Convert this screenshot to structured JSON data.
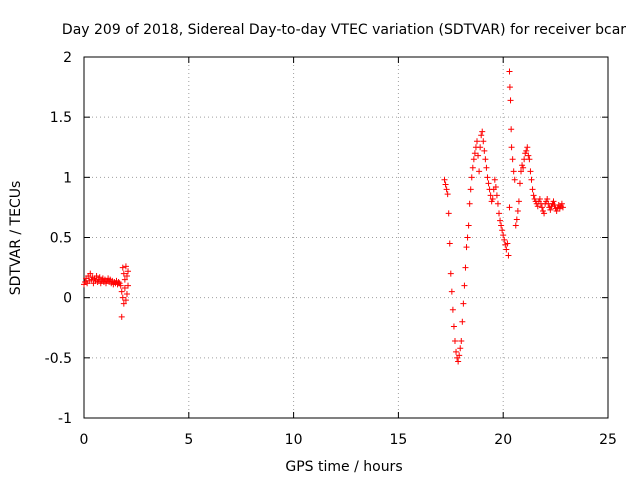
{
  "chart_data": {
    "type": "scatter",
    "title": "Day 209 of 2018, Sidereal Day-to-day VTEC variation (SDTVAR) for receiver bcar",
    "xlabel": "GPS time / hours",
    "ylabel": "SDTVAR / TECUs",
    "xlim": [
      0,
      25
    ],
    "ylim": [
      -1,
      2
    ],
    "grid": true,
    "marker": "+",
    "series_color": "#ff0000",
    "xticks": [
      {
        "value": 0,
        "label": "0"
      },
      {
        "value": 5,
        "label": "5"
      },
      {
        "value": 10,
        "label": "10"
      },
      {
        "value": 15,
        "label": "15"
      },
      {
        "value": 20,
        "label": "20"
      },
      {
        "value": 25,
        "label": "25"
      }
    ],
    "yticks": [
      {
        "value": -1,
        "label": "-1"
      },
      {
        "value": -0.5,
        "label": "-0.5"
      },
      {
        "value": 0,
        "label": "0"
      },
      {
        "value": 0.5,
        "label": "0.5"
      },
      {
        "value": 1,
        "label": "1"
      },
      {
        "value": 1.5,
        "label": "1.5"
      },
      {
        "value": 2,
        "label": "2"
      }
    ],
    "series": [
      {
        "name": "SDTVAR",
        "points": [
          [
            0.0,
            0.11
          ],
          [
            0.05,
            0.13
          ],
          [
            0.1,
            0.16
          ],
          [
            0.15,
            0.12
          ],
          [
            0.2,
            0.18
          ],
          [
            0.25,
            0.14
          ],
          [
            0.3,
            0.2
          ],
          [
            0.35,
            0.15
          ],
          [
            0.4,
            0.17
          ],
          [
            0.45,
            0.12
          ],
          [
            0.5,
            0.16
          ],
          [
            0.55,
            0.14
          ],
          [
            0.6,
            0.18
          ],
          [
            0.65,
            0.13
          ],
          [
            0.7,
            0.15
          ],
          [
            0.75,
            0.17
          ],
          [
            0.8,
            0.12
          ],
          [
            0.85,
            0.14
          ],
          [
            0.9,
            0.16
          ],
          [
            0.95,
            0.13
          ],
          [
            1.0,
            0.15
          ],
          [
            1.05,
            0.12
          ],
          [
            1.1,
            0.14
          ],
          [
            1.15,
            0.16
          ],
          [
            1.2,
            0.13
          ],
          [
            1.25,
            0.15
          ],
          [
            1.3,
            0.12
          ],
          [
            1.35,
            0.14
          ],
          [
            1.4,
            0.11
          ],
          [
            1.45,
            0.13
          ],
          [
            1.5,
            0.12
          ],
          [
            1.55,
            0.14
          ],
          [
            1.6,
            0.11
          ],
          [
            1.65,
            0.13
          ],
          [
            1.7,
            0.12
          ],
          [
            1.75,
            0.1
          ],
          [
            1.8,
            0.05
          ],
          [
            1.8,
            -0.16
          ],
          [
            1.85,
            0.25
          ],
          [
            1.85,
            0.0
          ],
          [
            1.9,
            0.2
          ],
          [
            1.9,
            -0.05
          ],
          [
            1.95,
            0.15
          ],
          [
            1.95,
            0.08
          ],
          [
            2.0,
            0.26
          ],
          [
            2.0,
            -0.02
          ],
          [
            2.05,
            0.18
          ],
          [
            2.05,
            0.03
          ],
          [
            2.1,
            0.22
          ],
          [
            2.1,
            0.1
          ],
          [
            17.2,
            0.98
          ],
          [
            17.25,
            0.94
          ],
          [
            17.3,
            0.9
          ],
          [
            17.35,
            0.86
          ],
          [
            17.4,
            0.7
          ],
          [
            17.45,
            0.45
          ],
          [
            17.5,
            0.2
          ],
          [
            17.55,
            0.05
          ],
          [
            17.6,
            -0.1
          ],
          [
            17.65,
            -0.24
          ],
          [
            17.7,
            -0.36
          ],
          [
            17.75,
            -0.45
          ],
          [
            17.8,
            -0.5
          ],
          [
            17.85,
            -0.53
          ],
          [
            17.9,
            -0.48
          ],
          [
            17.95,
            -0.42
          ],
          [
            18.0,
            -0.36
          ],
          [
            18.05,
            -0.2
          ],
          [
            18.1,
            -0.05
          ],
          [
            18.15,
            0.1
          ],
          [
            18.2,
            0.25
          ],
          [
            18.25,
            0.42
          ],
          [
            18.3,
            0.5
          ],
          [
            18.35,
            0.6
          ],
          [
            18.4,
            0.78
          ],
          [
            18.45,
            0.9
          ],
          [
            18.5,
            1.0
          ],
          [
            18.55,
            1.08
          ],
          [
            18.6,
            1.15
          ],
          [
            18.65,
            1.2
          ],
          [
            18.7,
            1.25
          ],
          [
            18.75,
            1.3
          ],
          [
            18.8,
            1.18
          ],
          [
            18.85,
            1.05
          ],
          [
            18.9,
            1.25
          ],
          [
            18.95,
            1.35
          ],
          [
            19.0,
            1.38
          ],
          [
            19.05,
            1.3
          ],
          [
            19.1,
            1.22
          ],
          [
            19.15,
            1.15
          ],
          [
            19.2,
            1.08
          ],
          [
            19.25,
            1.0
          ],
          [
            19.3,
            0.95
          ],
          [
            19.35,
            0.9
          ],
          [
            19.4,
            0.85
          ],
          [
            19.45,
            0.8
          ],
          [
            19.5,
            0.82
          ],
          [
            19.55,
            0.9
          ],
          [
            19.6,
            0.98
          ],
          [
            19.65,
            0.92
          ],
          [
            19.7,
            0.85
          ],
          [
            19.75,
            0.78
          ],
          [
            19.8,
            0.7
          ],
          [
            19.85,
            0.64
          ],
          [
            19.9,
            0.6
          ],
          [
            19.95,
            0.56
          ],
          [
            20.0,
            0.52
          ],
          [
            20.05,
            0.48
          ],
          [
            20.1,
            0.44
          ],
          [
            20.15,
            0.4
          ],
          [
            20.2,
            0.45
          ],
          [
            20.25,
            0.35
          ],
          [
            20.3,
            0.75
          ],
          [
            20.3,
            1.88
          ],
          [
            20.32,
            1.75
          ],
          [
            20.35,
            1.64
          ],
          [
            20.38,
            1.4
          ],
          [
            20.4,
            1.25
          ],
          [
            20.45,
            1.15
          ],
          [
            20.5,
            1.05
          ],
          [
            20.55,
            0.98
          ],
          [
            20.6,
            0.6
          ],
          [
            20.65,
            0.65
          ],
          [
            20.7,
            0.72
          ],
          [
            20.75,
            0.8
          ],
          [
            20.8,
            0.95
          ],
          [
            20.85,
            1.05
          ],
          [
            20.9,
            1.1
          ],
          [
            20.95,
            1.08
          ],
          [
            21.0,
            1.15
          ],
          [
            21.05,
            1.2
          ],
          [
            21.1,
            1.22
          ],
          [
            21.15,
            1.25
          ],
          [
            21.2,
            1.18
          ],
          [
            21.25,
            1.15
          ],
          [
            21.3,
            1.05
          ],
          [
            21.35,
            0.98
          ],
          [
            21.4,
            0.9
          ],
          [
            21.45,
            0.85
          ],
          [
            21.5,
            0.82
          ],
          [
            21.55,
            0.8
          ],
          [
            21.6,
            0.78
          ],
          [
            21.65,
            0.76
          ],
          [
            21.7,
            0.8
          ],
          [
            21.75,
            0.82
          ],
          [
            21.8,
            0.78
          ],
          [
            21.85,
            0.75
          ],
          [
            21.9,
            0.72
          ],
          [
            21.95,
            0.7
          ],
          [
            22.0,
            0.78
          ],
          [
            22.05,
            0.8
          ],
          [
            22.1,
            0.82
          ],
          [
            22.15,
            0.78
          ],
          [
            22.2,
            0.75
          ],
          [
            22.25,
            0.73
          ],
          [
            22.3,
            0.76
          ],
          [
            22.35,
            0.78
          ],
          [
            22.4,
            0.8
          ],
          [
            22.45,
            0.77
          ],
          [
            22.5,
            0.74
          ],
          [
            22.55,
            0.72
          ],
          [
            22.6,
            0.75
          ],
          [
            22.65,
            0.77
          ],
          [
            22.7,
            0.74
          ],
          [
            22.75,
            0.76
          ],
          [
            22.8,
            0.78
          ],
          [
            22.85,
            0.75
          ]
        ]
      }
    ]
  }
}
